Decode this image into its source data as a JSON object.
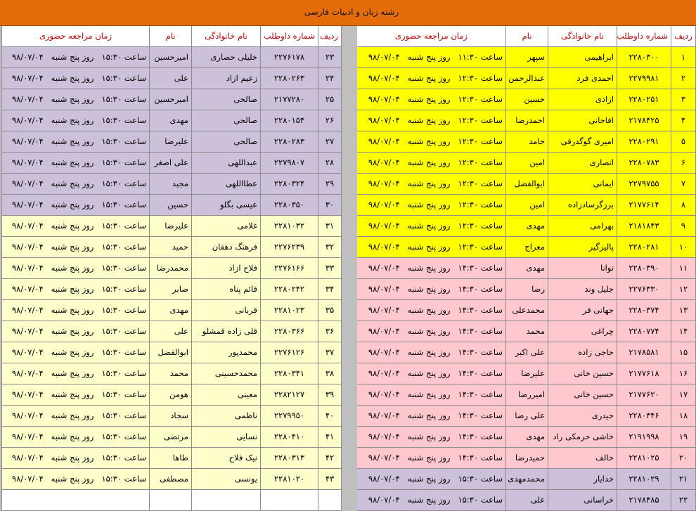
{
  "header": {
    "title": "رشته زبان و ادبیات فارسی"
  },
  "tables": [
    {
      "columns": [
        "ردیف",
        "شماره داوطلب",
        "نام خانوادگی",
        "نام",
        "زمان مراجعه حضوری"
      ],
      "rows": [
        [
          "۱",
          "۲۲۸۰۳۰۰",
          "ابراهیمی",
          "سپهر",
          "ساعت ۱۱:۳۰   روز پنج شنبه   ۹۸/۰۷/۰۴"
        ],
        [
          "۲",
          "۲۲۷۹۹۸۱",
          "احمدی فرد",
          "عبدالرحمن",
          "ساعت ۱۲:۳۰   روز پنج شنبه   ۹۸/۰۷/۰۴"
        ],
        [
          "۳",
          "۲۲۸۰۲۵۱",
          "ازادی",
          "حسین",
          "ساعت ۱۲:۳۰   روز پنج شنبه   ۹۸/۰۷/۰۴"
        ],
        [
          "۴",
          "۲۱۷۸۴۲۵",
          "افاجانی",
          "احمدرضا",
          "ساعت ۱۲:۳۰   روز پنج شنبه   ۹۸/۰۷/۰۴"
        ],
        [
          "۵",
          "۲۲۸۰۲۹۱",
          "امیری گوگدرقی",
          "حامد",
          "ساعت ۱۲:۳۰   روز پنج شنبه   ۹۸/۰۷/۰۴"
        ],
        [
          "۶",
          "۲۲۸۰۷۸۳",
          "انصاری",
          "امین",
          "ساعت ۱۲:۳۰   روز پنج شنبه   ۹۸/۰۷/۰۴"
        ],
        [
          "۷",
          "۲۲۷۹۷۵۵",
          "ایمانی",
          "ابوالفضل",
          "ساعت ۱۲:۳۰   روز پنج شنبه   ۹۸/۰۷/۰۴"
        ],
        [
          "۸",
          "۲۱۷۷۶۱۴",
          "برزگرسادزاده",
          "امین",
          "ساعت ۱۲:۳۰   روز پنج شنبه   ۹۸/۰۷/۰۴"
        ],
        [
          "۹",
          "۲۱۸۱۸۴۳",
          "بهرامی",
          "مهدی",
          "ساعت ۱۲:۳۰   روز پنج شنبه   ۹۸/۰۷/۰۴"
        ],
        [
          "۱۰",
          "۲۲۸۰۲۸۱",
          "پالیزگیر",
          "معراج",
          "ساعت ۱۲:۳۰   روز پنج شنبه   ۹۸/۰۷/۰۴"
        ],
        [
          "۱۱",
          "۲۲۸۰۳۹۰",
          "توانا",
          "مهدی",
          "ساعت ۱۴:۳۰   روز پنج شنبه   ۹۸/۰۷/۰۴"
        ],
        [
          "۱۲",
          "۲۲۷۶۳۳۰",
          "جلیل وند",
          "رضا",
          "ساعت ۱۴:۳۰   روز پنج شنبه   ۹۸/۰۷/۰۴"
        ],
        [
          "۱۳",
          "۲۲۸۰۳۷۴",
          "جهانی فر",
          "محمدعلی",
          "ساعت ۱۴:۳۰   روز پنج شنبه   ۹۸/۰۷/۰۴"
        ],
        [
          "۱۴",
          "۲۲۸۰۷۷۴",
          "چراغی",
          "محمد",
          "ساعت ۱۴:۳۰   روز پنج شنبه   ۹۸/۰۷/۰۴"
        ],
        [
          "۱۵",
          "۲۱۷۸۵۸۱",
          "حاجی زاده",
          "علی اکبر",
          "ساعت ۱۴:۳۰   روز پنج شنبه   ۹۸/۰۷/۰۴"
        ],
        [
          "۱۶",
          "۲۱۷۷۶۱۸",
          "حسین خانی",
          "علیرضا",
          "ساعت ۱۴:۳۰   روز پنج شنبه   ۹۸/۰۷/۰۴"
        ],
        [
          "۱۷",
          "۲۱۷۷۶۲۰",
          "حسین خانی",
          "امیررضا",
          "ساعت ۱۴:۳۰   روز پنج شنبه   ۹۸/۰۷/۰۴"
        ],
        [
          "۱۸",
          "۲۲۸۰۳۴۶",
          "حیدری",
          "علی رضا",
          "ساعت ۱۴:۳۰   روز پنج شنبه   ۹۸/۰۷/۰۴"
        ],
        [
          "۱۹",
          "۲۱۹۱۹۹۸",
          "خاشی حرمکی راد",
          "مهدی",
          "ساعت ۱۴:۳۰   روز پنج شنبه   ۹۸/۰۷/۰۴"
        ],
        [
          "۲۰",
          "۲۲۸۱۰۲۵",
          "خالف",
          "حمیدرضا",
          "ساعت ۱۴:۳۰   روز پنج شنبه   ۹۸/۰۷/۰۴"
        ],
        [
          "۲۱",
          "۲۲۸۱۰۲۹",
          "خدایار",
          "محمدمهدی",
          "ساعت ۱۵:۳۰   روز پنج شنبه   ۹۸/۰۷/۰۴"
        ],
        [
          "۲۲",
          "۲۱۷۸۴۸۵",
          "خراسانی",
          "علی",
          "ساعت ۱۵:۳۰   روز پنج شنبه   ۹۸/۰۷/۰۴"
        ]
      ]
    },
    {
      "columns": [
        "ردیف",
        "شماره داوطلب",
        "نام خانوادگی",
        "نام",
        "زمان مراجعه حضوری"
      ],
      "rows": [
        [
          "۲۳",
          "۲۲۷۶۱۷۸",
          "خلیلی حصاری",
          "امیرحسین",
          "ساعت ۱۵:۳۰   روز پنج شنبه   ۹۸/۰۷/۰۴"
        ],
        [
          "۲۴",
          "۲۲۸۰۲۶۳",
          "زعیم ازاد",
          "علی",
          "ساعت ۱۵:۳۰   روز پنج شنبه   ۹۸/۰۷/۰۴"
        ],
        [
          "۲۵",
          "۲۱۷۷۲۸۰",
          "صالحی",
          "امیرحسین",
          "ساعت ۱۵:۳۰   روز پنج شنبه   ۹۸/۰۷/۰۴"
        ],
        [
          "۲۶",
          "۲۲۸۰۱۵۴",
          "صالحی",
          "مهدی",
          "ساعت ۱۵:۳۰   روز پنج شنبه   ۹۸/۰۷/۰۴"
        ],
        [
          "۲۷",
          "۲۲۸۰۲۸۳",
          "صالحی",
          "علیرضا",
          "ساعت ۱۵:۳۰   روز پنج شنبه   ۹۸/۰۷/۰۴"
        ],
        [
          "۲۸",
          "۲۲۷۹۸۰۷",
          "عبداللهی",
          "علی اصغر",
          "ساعت ۱۵:۳۰   روز پنج شنبه   ۹۸/۰۷/۰۴"
        ],
        [
          "۲۹",
          "۲۲۸۰۳۲۴",
          "عطااللهی",
          "مجید",
          "ساعت ۱۵:۳۰   روز پنج شنبه   ۹۸/۰۷/۰۴"
        ],
        [
          "۳۰",
          "۲۲۸۰۳۵۰",
          "عیسی بگلو",
          "حسین",
          "ساعت ۱۵:۳۰   روز پنج شنبه   ۹۸/۰۷/۰۴"
        ],
        [
          "۳۱",
          "۲۲۸۱۰۳۲",
          "غلامی",
          "علیرضا",
          "ساعت ۱۵:۳۰   روز پنج شنبه   ۹۸/۰۷/۰۴"
        ],
        [
          "۳۲",
          "۲۲۷۶۲۳۹",
          "فرهنگ دهقان",
          "حمید",
          "ساعت ۱۵:۳۰   روز پنج شنبه   ۹۸/۰۷/۰۴"
        ],
        [
          "۳۳",
          "۲۲۷۶۱۶۶",
          "فلاح ازاد",
          "محمدرضا",
          "ساعت ۱۵:۳۰   روز پنج شنبه   ۹۸/۰۷/۰۴"
        ],
        [
          "۳۴",
          "۲۲۸۰۲۴۲",
          "قائم پناه",
          "صابر",
          "ساعت ۱۵:۳۰   روز پنج شنبه   ۹۸/۰۷/۰۴"
        ],
        [
          "۳۵",
          "۲۲۸۱۰۲۳",
          "قربانی",
          "مهدی",
          "ساعت ۱۵:۳۰   روز پنج شنبه   ۹۸/۰۷/۰۴"
        ],
        [
          "۳۶",
          "۲۲۸۰۳۶۶",
          "قلی زاده قمشلو",
          "علی",
          "ساعت ۱۵:۳۰   روز پنج شنبه   ۹۸/۰۷/۰۴"
        ],
        [
          "۳۷",
          "۲۲۷۶۱۲۶",
          "محمدپور",
          "ابوالفضل",
          "ساعت ۱۵:۳۰   روز پنج شنبه   ۹۸/۰۷/۰۴"
        ],
        [
          "۳۸",
          "۲۲۸۰۳۴۱",
          "محمدحسینی",
          "محمد",
          "ساعت ۱۵:۳۰   روز پنج شنبه   ۹۸/۰۷/۰۴"
        ],
        [
          "۳۹",
          "۲۲۸۲۱۲۷",
          "معینی",
          "هومن",
          "ساعت ۱۵:۳۰   روز پنج شنبه   ۹۸/۰۷/۰۴"
        ],
        [
          "۴۰",
          "۲۲۷۹۹۵۰",
          "ناظمی",
          "سجاد",
          "ساعت ۱۵:۳۰   روز پنج شنبه   ۹۸/۰۷/۰۴"
        ],
        [
          "۴۱",
          "۲۲۸۰۴۱۰",
          "نسایی",
          "مرتضی",
          "ساعت ۱۵:۳۰   روز پنج شنبه   ۹۸/۰۷/۰۴"
        ],
        [
          "۴۲",
          "۲۲۸۰۳۱۳",
          "نیک فلاح",
          "طاها",
          "ساعت ۱۵:۳۰   روز پنج شنبه   ۹۸/۰۷/۰۴"
        ],
        [
          "۴۳",
          "۲۲۸۱۰۲۰",
          "یونسی",
          "مصطفی",
          "ساعت ۱۵:۳۰   روز پنج شنبه   ۹۸/۰۷/۰۴"
        ]
      ]
    }
  ]
}
